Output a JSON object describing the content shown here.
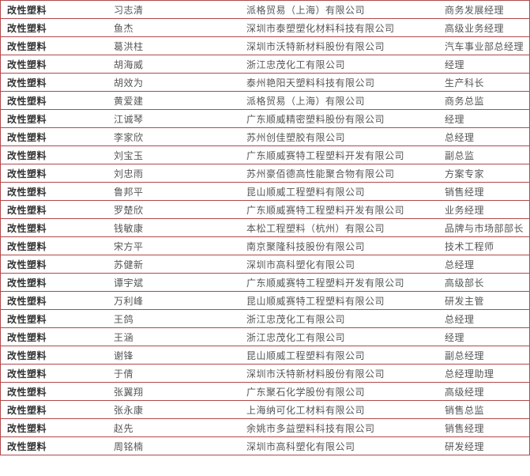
{
  "page": {
    "background_color": "#ffffff",
    "border_color": "#b0494b",
    "category_text_color": "#333333",
    "body_text_color": "#555555"
  },
  "table": {
    "columns": [
      "category",
      "name",
      "company",
      "title"
    ],
    "rows": [
      {
        "category": "改性塑料",
        "name": "习志清",
        "company": "派格贸易（上海）有限公司",
        "title": "商务发展经理"
      },
      {
        "category": "改性塑料",
        "name": "鱼杰",
        "company": "深圳市泰塑塑化材料科技有限公司",
        "title": "高级业务经理"
      },
      {
        "category": "改性塑料",
        "name": "葛洪柱",
        "company": "深圳市沃特新材料股份有限公司",
        "title": "汽车事业部总经理"
      },
      {
        "category": "改性塑料",
        "name": "胡海威",
        "company": "浙江忠茂化工有限公司",
        "title": "经理"
      },
      {
        "category": "改性塑料",
        "name": "胡效为",
        "company": "泰州艳阳天塑料科技有限公司",
        "title": "生产科长"
      },
      {
        "category": "改性塑料",
        "name": "黄爱建",
        "company": "派格贸易（上海）有限公司",
        "title": "商务总监"
      },
      {
        "category": "改性塑料",
        "name": "江诚琴",
        "company": "广东顺威精密塑料股份有限公司",
        "title": "经理"
      },
      {
        "category": "改性塑料",
        "name": "李家欣",
        "company": "苏州创佳塑胶有限公司",
        "title": "总经理"
      },
      {
        "category": "改性塑料",
        "name": "刘宝玉",
        "company": "广东顺威赛特工程塑料开发有限公司",
        "title": "副总监"
      },
      {
        "category": "改性塑料",
        "name": "刘忠雨",
        "company": "苏州豪佰德高性能聚合物有限公司",
        "title": "方案专家"
      },
      {
        "category": "改性塑料",
        "name": "鲁邦平",
        "company": "昆山顺威工程塑料有限公司",
        "title": "销售经理"
      },
      {
        "category": "改性塑料",
        "name": "罗楚欣",
        "company": "广东顺威赛特工程塑料开发有限公司",
        "title": "业务经理"
      },
      {
        "category": "改性塑料",
        "name": "钱敏康",
        "company": "本松工程塑料（杭州）有限公司",
        "title": "品牌与市场部部长"
      },
      {
        "category": "改性塑料",
        "name": "宋方平",
        "company": "南京聚隆科技股份有限公司",
        "title": "技术工程师"
      },
      {
        "category": "改性塑料",
        "name": "苏健新",
        "company": "深圳市高科塑化有限公司",
        "title": "总经理"
      },
      {
        "category": "改性塑料",
        "name": "谭宇斌",
        "company": "广东顺威赛特工程塑料开发有限公司",
        "title": "高级部长"
      },
      {
        "category": "改性塑料",
        "name": "万利峰",
        "company": "昆山顺威赛特工程塑料有限公司",
        "title": "研发主管"
      },
      {
        "category": "改性塑料",
        "name": "王鸽",
        "company": "浙江忠茂化工有限公司",
        "title": "总经理"
      },
      {
        "category": "改性塑料",
        "name": "王涵",
        "company": "浙江忠茂化工有限公司",
        "title": "经理"
      },
      {
        "category": "改性塑料",
        "name": "谢锋",
        "company": "昆山顺威工程塑料有限公司",
        "title": "副总经理"
      },
      {
        "category": "改性塑料",
        "name": "于倩",
        "company": "深圳市沃特新材料股份有限公司",
        "title": "总经理助理"
      },
      {
        "category": "改性塑料",
        "name": "张翼翔",
        "company": "广东聚石化学股份有限公司",
        "title": "高级经理"
      },
      {
        "category": "改性塑料",
        "name": "张永康",
        "company": "上海纳可化工材料有限公司",
        "title": "销售总监"
      },
      {
        "category": "改性塑料",
        "name": "赵先",
        "company": "余姚市多益塑料科技有限公司",
        "title": "销售经理"
      },
      {
        "category": "改性塑料",
        "name": "周铭楠",
        "company": "深圳市高科塑化有限公司",
        "title": "研发经理"
      }
    ]
  }
}
